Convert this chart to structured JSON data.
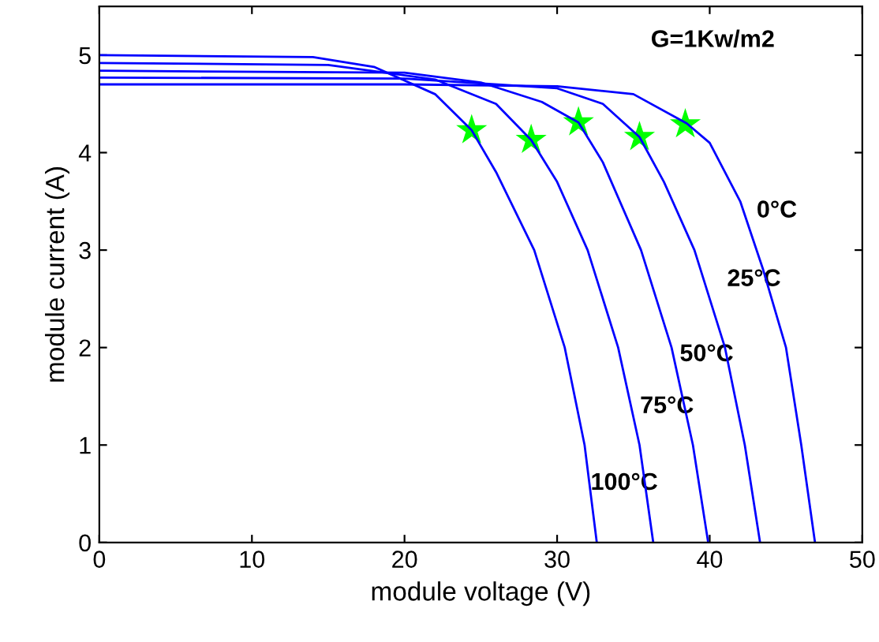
{
  "chart_data": {
    "type": "line",
    "xlabel": "module voltage (V)",
    "ylabel": "module current (A)",
    "xlim": [
      0,
      50
    ],
    "ylim": [
      0,
      5.5
    ],
    "xticks": [
      0,
      10,
      20,
      30,
      40,
      50
    ],
    "yticks": [
      0,
      1,
      2,
      3,
      4,
      5
    ],
    "grid": false,
    "marker": "none",
    "line_style": "solid",
    "series": [
      {
        "color": "#0000ff",
        "x": [
          0,
          20,
          30,
          35,
          38.5,
          40,
          42,
          43.5,
          45,
          46,
          46.9
        ],
        "values": [
          4.7,
          4.7,
          4.68,
          4.6,
          4.3,
          4.1,
          3.5,
          2.8,
          2.0,
          1.0,
          0
        ]
      },
      {
        "color": "#0000ff",
        "x": [
          0,
          20,
          30,
          33,
          35.4,
          37,
          39,
          41,
          42.3,
          43.3
        ],
        "values": [
          4.77,
          4.76,
          4.66,
          4.5,
          4.16,
          3.7,
          3.0,
          2.0,
          1.0,
          0
        ]
      },
      {
        "color": "#0000ff",
        "x": [
          0,
          20,
          25,
          29,
          31.4,
          33,
          35.5,
          37.5,
          38.9,
          39.9
        ],
        "values": [
          4.84,
          4.82,
          4.72,
          4.52,
          4.31,
          3.9,
          3.0,
          2.0,
          1.0,
          0
        ]
      },
      {
        "color": "#0000ff",
        "x": [
          0,
          15,
          22,
          26,
          28.3,
          30,
          32,
          34,
          35.4,
          36.3
        ],
        "values": [
          4.92,
          4.9,
          4.75,
          4.5,
          4.13,
          3.7,
          3.0,
          2.0,
          1.0,
          0
        ]
      },
      {
        "color": "#0000ff",
        "x": [
          0,
          14,
          18,
          22,
          24.4,
          26,
          28.5,
          30.5,
          31.8,
          32.6
        ],
        "values": [
          5.0,
          4.98,
          4.88,
          4.6,
          4.23,
          3.8,
          3.0,
          2.0,
          1.0,
          0
        ]
      },
      {
        "type": "scatter",
        "marker": "star",
        "color": "#00ff00",
        "x": [
          24.4,
          28.3,
          31.4,
          35.4,
          38.4
        ],
        "values": [
          4.23,
          4.13,
          4.31,
          4.16,
          4.29
        ]
      }
    ],
    "annotations": [
      "0°C",
      "25°C",
      "50°C",
      "75°C",
      "100°C",
      "G=1Kw/m2"
    ]
  }
}
